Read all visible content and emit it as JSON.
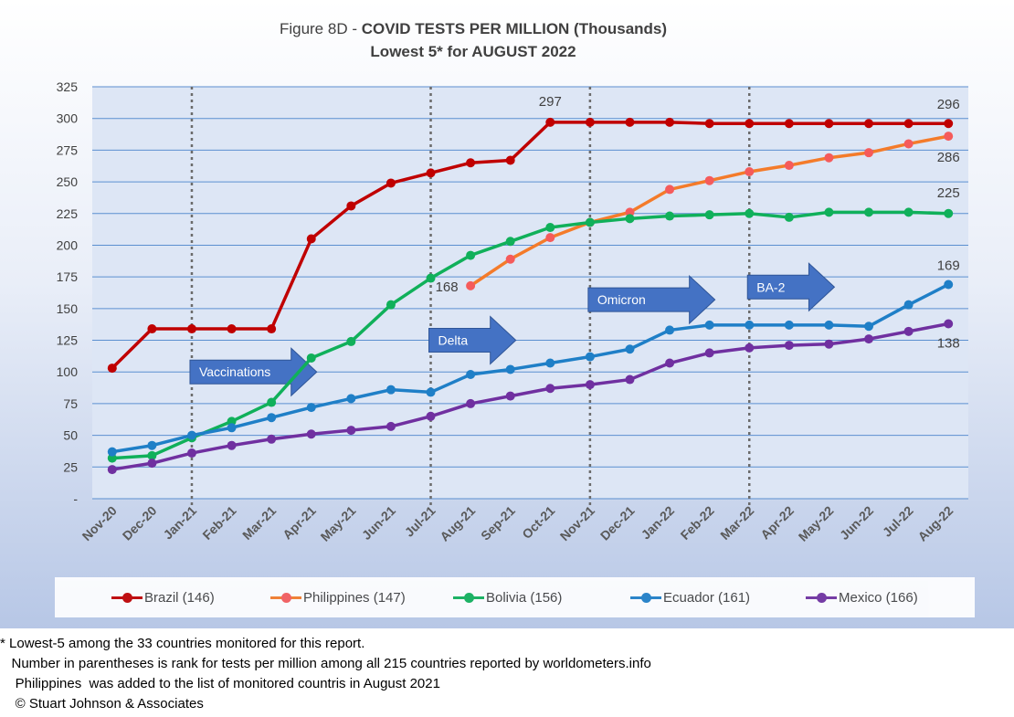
{
  "title": {
    "prefix": "Figure 8D - ",
    "main": "COVID TESTS PER MILLION (Thousands)",
    "subtitle": "Lowest 5* for AUGUST  2022"
  },
  "chart_data": {
    "type": "line",
    "categories": [
      "Nov-20",
      "Dec-20",
      "Jan-21",
      "Feb-21",
      "Mar-21",
      "Apr-21",
      "May-21",
      "Jun-21",
      "Jul-21",
      "Aug-21",
      "Sep-21",
      "Oct-21",
      "Nov-21",
      "Dec-21",
      "Jan-22",
      "Feb-22",
      "Mar-22",
      "Apr-22",
      "May-22",
      "Jun-22",
      "Jul-22",
      "Aug-22"
    ],
    "yticks": [
      "-",
      "25",
      "50",
      "75",
      "100",
      "125",
      "150",
      "175",
      "200",
      "225",
      "250",
      "275",
      "300",
      "325"
    ],
    "ylim": [
      0,
      325
    ],
    "grid": true,
    "legend_position": "bottom",
    "series": [
      {
        "name": "Brazil (146)",
        "color": "#c00000",
        "dot": "#c00000",
        "values": [
          103,
          134,
          134,
          134,
          134,
          205,
          231,
          249,
          257,
          265,
          267,
          297,
          297,
          297,
          297,
          296,
          296,
          296,
          296,
          296,
          296,
          296
        ]
      },
      {
        "name": "Philippines (147)",
        "color": "#f47b2a",
        "dot": "#f55b5b",
        "values": [
          null,
          null,
          null,
          null,
          null,
          null,
          null,
          null,
          null,
          168,
          189,
          206,
          218,
          226,
          244,
          251,
          258,
          263,
          269,
          273,
          280,
          286
        ]
      },
      {
        "name": "Bolivia (156)",
        "color": "#10b05a",
        "dot": "#10b05a",
        "values": [
          32,
          34,
          48,
          61,
          76,
          111,
          124,
          153,
          174,
          192,
          203,
          214,
          218,
          221,
          223,
          224,
          225,
          222,
          226,
          226,
          226,
          225
        ]
      },
      {
        "name": "Ecuador (161)",
        "color": "#1f7fc7",
        "dot": "#1f7fc7",
        "values": [
          37,
          42,
          50,
          56,
          64,
          72,
          79,
          86,
          84,
          98,
          102,
          107,
          112,
          118,
          133,
          137,
          137,
          137,
          137,
          136,
          153,
          169
        ]
      },
      {
        "name": "Mexico (166)",
        "color": "#7030a0",
        "dot": "#7030a0",
        "values": [
          23,
          28,
          36,
          42,
          47,
          51,
          54,
          57,
          65,
          75,
          81,
          87,
          90,
          94,
          107,
          115,
          119,
          121,
          122,
          126,
          132,
          138
        ]
      }
    ],
    "vlines": [
      "Jan-21",
      "Jul-21",
      "Nov-21",
      "Mar-22"
    ],
    "annotations": [
      {
        "text": "297",
        "x": "Oct-21",
        "y": 297
      },
      {
        "text": "296",
        "x": "Aug-22",
        "y": 296
      },
      {
        "text": "286",
        "x": "Aug-22",
        "y": 286
      },
      {
        "text": "225",
        "x": "Aug-22",
        "y": 225
      },
      {
        "text": "168",
        "x": "Aug-21",
        "y": 168
      },
      {
        "text": "169",
        "x": "Aug-22",
        "y": 169
      },
      {
        "text": "138",
        "x": "Aug-22",
        "y": 138
      }
    ],
    "arrows": [
      {
        "label": "Vaccinations",
        "x_from": "Jan-21",
        "x_to": "Apr-21",
        "y": 100
      },
      {
        "label": "Delta",
        "x_from": "Jul-21",
        "x_to": "Sep-21",
        "y": 125
      },
      {
        "label": "Omicron",
        "x_from": "Nov-21",
        "x_to": "Feb-22",
        "y": 157
      },
      {
        "label": "BA-2",
        "x_from": "Mar-22",
        "x_to": "May-22",
        "y": 167
      }
    ]
  },
  "footnotes": [
    "* Lowest-5 among the 33 countries monitored for this report.",
    "   Number in parentheses is rank for tests per million among all 215 countries reported by worldometers.info",
    "    Philippines  was added to the list of monitored countris in August 2021",
    "    © Stuart Johnson & Associates"
  ]
}
